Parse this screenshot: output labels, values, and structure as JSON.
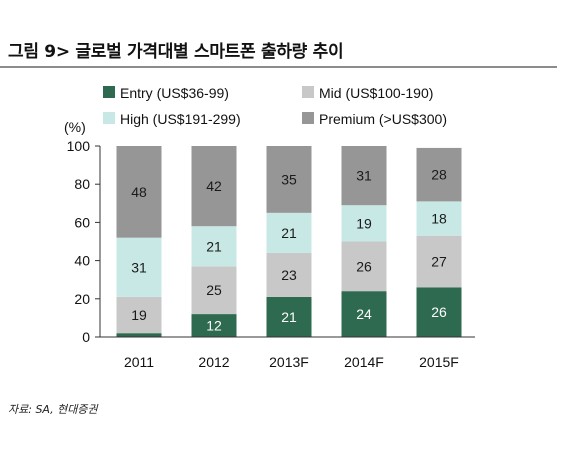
{
  "header": {
    "title": "그림 9> 글로벌 가격대별 스마트폰 출하량 추이"
  },
  "footer": {
    "source": "자료: SA, 현대증권"
  },
  "chart_data": {
    "type": "bar",
    "stacked": true,
    "title": "",
    "ylabel": "(%)",
    "xlabel": "",
    "ylim": [
      0,
      100
    ],
    "yticks": [
      0,
      20,
      40,
      60,
      80,
      100
    ],
    "grid": false,
    "legend_position": "top",
    "categories": [
      "2011",
      "2012",
      "2013F",
      "2014F",
      "2015F"
    ],
    "series": [
      {
        "name": "Entry (US$36-99)",
        "color": "#2d6a4f",
        "label_color": "#ffffff",
        "values": [
          2,
          12,
          21,
          24,
          26
        ]
      },
      {
        "name": "Mid (US$100-190)",
        "color": "#c8c8c8",
        "label_color": "#1a1a1a",
        "values": [
          19,
          25,
          23,
          26,
          27
        ]
      },
      {
        "name": "High (US$191-299)",
        "color": "#c8e8e6",
        "label_color": "#1a1a1a",
        "values": [
          31,
          21,
          21,
          19,
          18
        ]
      },
      {
        "name": "Premium (>US$300)",
        "color": "#969696",
        "label_color": "#1a1a1a",
        "values": [
          48,
          42,
          35,
          31,
          28
        ]
      }
    ],
    "data_labels": [
      [
        "",
        "12",
        "21",
        "24",
        "26"
      ],
      [
        "19",
        "25",
        "23",
        "26",
        "27"
      ],
      [
        "31",
        "21",
        "21",
        "19",
        "18"
      ],
      [
        "48",
        "42",
        "35",
        "31",
        "28"
      ]
    ]
  }
}
